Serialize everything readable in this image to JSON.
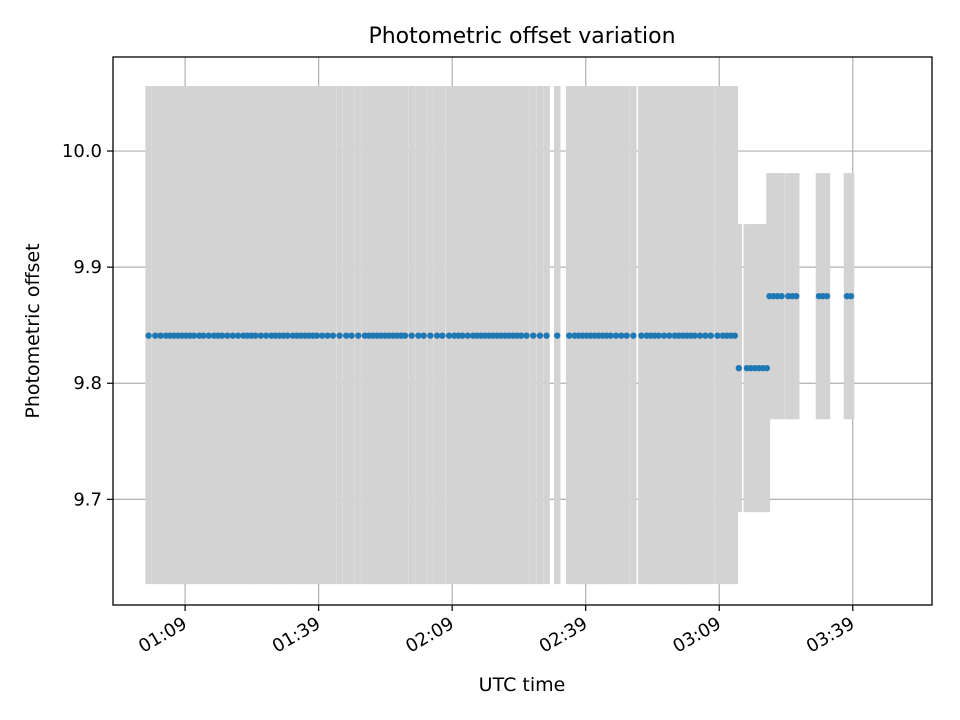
{
  "chart_data": {
    "type": "scatter",
    "title": "Photometric offset variation",
    "xlabel": "UTC time",
    "ylabel": "Photometric offset",
    "grid": true,
    "x_unit": "minutes after 00:00 UTC",
    "xlim": [
      52.8,
      236.8
    ],
    "ylim": [
      9.609,
      10.081
    ],
    "xticks": [
      {
        "value": 69,
        "label": "01:09"
      },
      {
        "value": 99,
        "label": "01:39"
      },
      {
        "value": 129,
        "label": "02:09"
      },
      {
        "value": 159,
        "label": "02:39"
      },
      {
        "value": 189,
        "label": "03:09"
      },
      {
        "value": 219,
        "label": "03:39"
      }
    ],
    "yticks": [
      {
        "value": 9.7,
        "label": "9.7"
      },
      {
        "value": 9.8,
        "label": "9.8"
      },
      {
        "value": 9.9,
        "label": "9.9"
      },
      {
        "value": 10.0,
        "label": "10.0"
      }
    ],
    "colors": {
      "points": "#1f77b4",
      "error_bars": "#d3d3d3",
      "grid": "#b0b0b0"
    },
    "segments": [
      {
        "y": 9.841,
        "err_low": 9.627,
        "err_high": 10.056,
        "x": [
          60.8,
          62.3,
          63.5,
          64.7,
          65.6,
          66.5,
          67.4,
          68.3,
          69.2,
          70.1,
          71.0,
          72.2,
          73.1,
          74.3,
          75.5,
          76.4,
          77.3,
          78.5,
          79.7,
          80.9,
          82.1,
          83.0,
          83.9,
          84.8,
          86.0,
          87.2,
          88.4,
          89.3,
          90.2,
          91.1,
          92.0,
          93.2,
          94.1,
          95.0,
          95.9,
          96.8,
          97.7,
          98.6,
          99.8,
          101.0,
          102.2,
          103.7,
          105.2,
          106.4,
          107.9,
          109.4,
          110.3,
          111.2,
          112.1,
          113.0,
          113.9,
          114.8,
          115.7,
          116.6,
          117.5,
          118.4,
          119.9,
          121.4,
          122.6,
          124.1,
          125.6,
          126.8,
          128.3,
          129.5,
          130.4,
          131.3,
          132.5,
          133.7,
          134.6,
          135.5,
          136.4,
          137.3,
          138.2,
          139.1,
          140.0,
          140.9,
          141.8,
          142.7,
          143.6,
          144.5,
          145.7,
          147.2,
          148.7,
          150.2,
          152.6,
          155.3,
          156.5,
          157.4,
          158.3,
          159.2,
          160.1,
          161.0,
          161.9,
          162.8,
          163.7,
          164.6,
          165.8,
          167.0,
          168.2,
          169.7,
          171.5,
          172.7,
          173.6,
          174.5,
          175.4,
          176.6,
          177.8,
          179.0,
          179.9,
          180.8,
          181.7,
          182.6,
          183.5,
          184.7,
          185.9,
          187.1,
          188.6,
          189.8,
          190.7,
          191.6,
          192.5
        ]
      },
      {
        "y": 9.813,
        "err_low": 9.689,
        "err_high": 9.937,
        "x": [
          193.4,
          195.2,
          196.1,
          197.0,
          197.9,
          198.8,
          199.7
        ]
      },
      {
        "y": 9.875,
        "err_low": 9.769,
        "err_high": 9.981,
        "x": [
          200.3,
          201.2,
          202.1,
          203.0,
          204.5,
          205.4,
          206.3,
          211.4,
          212.3,
          213.2,
          217.7,
          218.6
        ]
      }
    ]
  }
}
